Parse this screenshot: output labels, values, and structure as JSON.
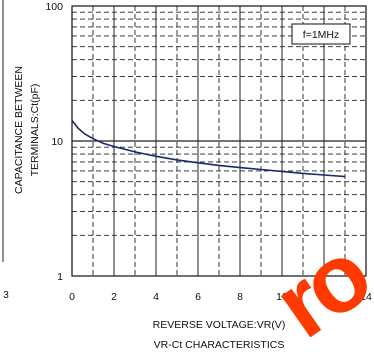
{
  "chart_data": {
    "type": "line",
    "title": "VR-Ct CHARACTERISTICS",
    "xlabel": "REVERSE VOLTAGE:VR(V)",
    "ylabel_line1": "CAPACITANCE BETWEEN",
    "ylabel_line2": "TERMINALS:Ct(pF)",
    "annotation": "f=1MHz",
    "xlim": [
      0,
      14
    ],
    "ylim": [
      1,
      100
    ],
    "y_scale": "log",
    "grid": true,
    "x_ticks": [
      "0",
      "2",
      "4",
      "6",
      "8",
      "10",
      "12",
      "14"
    ],
    "y_ticks": [
      "1",
      "10",
      "100"
    ],
    "left_cut_tick": "3",
    "series": [
      {
        "color": "#1c2a6e",
        "x": [
          0,
          0.3,
          0.6,
          1,
          1.5,
          2,
          3,
          4,
          5,
          6,
          7,
          8,
          9,
          10,
          11,
          12,
          13
        ],
        "y": [
          14.2,
          12.4,
          11.3,
          10.4,
          9.6,
          9.1,
          8.3,
          7.7,
          7.25,
          6.9,
          6.6,
          6.35,
          6.15,
          5.95,
          5.75,
          5.6,
          5.45
        ]
      }
    ]
  },
  "watermark_text": "ro"
}
